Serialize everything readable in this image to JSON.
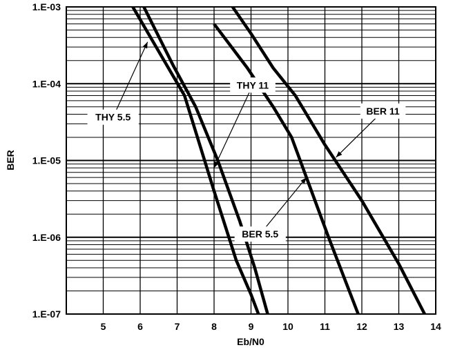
{
  "chart_data": {
    "type": "line",
    "xlabel": "Eb/N0",
    "ylabel": "BER",
    "y_scale": "log",
    "xlim": [
      4,
      14
    ],
    "ylim": [
      1e-07,
      0.001
    ],
    "x_ticks": [
      "5",
      "6",
      "7",
      "8",
      "9",
      "10",
      "11",
      "12",
      "13",
      "14"
    ],
    "y_ticks": [
      "1.E-07",
      "1.E-06",
      "1.E-05",
      "1.E-04",
      "1.E-03"
    ],
    "grid": true,
    "series": [
      {
        "name": "THY 5.5",
        "x": [
          5.8,
          6.4,
          7.2,
          8.0,
          8.6,
          9.0,
          9.2
        ],
        "y": [
          0.001,
          0.00032,
          7e-05,
          4e-06,
          5e-07,
          1.8e-07,
          1e-07
        ]
      },
      {
        "name": "THY 11",
        "x": [
          6.1,
          6.9,
          7.5,
          8.1,
          8.7,
          9.1,
          9.45
        ],
        "y": [
          0.001,
          0.00017,
          5e-05,
          1e-05,
          1.6e-06,
          4e-07,
          1e-07
        ]
      },
      {
        "name": "BER 5.5",
        "x": [
          8.0,
          8.9,
          9.6,
          10.1,
          10.5,
          11.1,
          11.9
        ],
        "y": [
          0.0006,
          0.00016,
          5e-05,
          2e-05,
          6e-06,
          1e-06,
          1e-07
        ]
      },
      {
        "name": "BER 11",
        "x": [
          8.5,
          9.0,
          9.6,
          10.2,
          11.0,
          12.0,
          13.0,
          13.7
        ],
        "y": [
          0.001,
          0.00045,
          0.00016,
          7e-05,
          1.6e-05,
          3e-06,
          4.5e-07,
          1e-07
        ]
      }
    ],
    "annotations": [
      {
        "text": "THY 5.5",
        "points_to": {
          "x": 6.2,
          "y": 0.00035
        }
      },
      {
        "text": "THY 11",
        "points_to": {
          "x": 8.0,
          "y": 8e-06
        }
      },
      {
        "text": "BER 5.5",
        "points_to": {
          "x": 10.5,
          "y": 6e-06
        }
      },
      {
        "text": "BER 11",
        "points_to": {
          "x": 11.3,
          "y": 1.1e-05
        }
      }
    ]
  }
}
